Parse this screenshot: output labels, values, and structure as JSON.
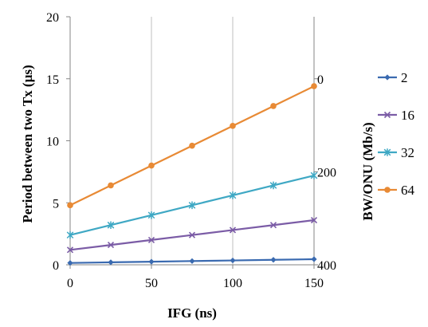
{
  "chart_data": {
    "type": "line",
    "xlabel": "IFG (ns)",
    "ylabel": "Period between two Tx (µs)",
    "y2label": "BW/ONU (Mb/s)",
    "x": [
      0,
      25,
      50,
      75,
      100,
      125,
      150
    ],
    "xticks": [
      "0",
      "50",
      "100",
      "150"
    ],
    "xtick_values": [
      0,
      50,
      100,
      150
    ],
    "xlim": [
      0,
      150
    ],
    "ylim": [
      0,
      20
    ],
    "yticks": [
      "0",
      "5",
      "10",
      "15",
      "20"
    ],
    "ytick_values": [
      0,
      5,
      10,
      15,
      20
    ],
    "y2ticks": [
      "0",
      "200",
      "400"
    ],
    "y2tick_values": [
      0,
      200,
      400
    ],
    "y2lim_top_at_y": 15,
    "y2lim_bottom_at_y": 0,
    "grid": "vertical",
    "legend_position": "right",
    "series": [
      {
        "name": "2",
        "color": "#3a6ab0",
        "marker": "diamond",
        "values": [
          0.15,
          0.2,
          0.25,
          0.3,
          0.35,
          0.4,
          0.45
        ]
      },
      {
        "name": "16",
        "color": "#7b5ca6",
        "marker": "x",
        "values": [
          1.2,
          1.6,
          2.0,
          2.4,
          2.8,
          3.2,
          3.6
        ]
      },
      {
        "name": "32",
        "color": "#3fa8c4",
        "marker": "star",
        "values": [
          2.4,
          3.2,
          4.0,
          4.8,
          5.6,
          6.4,
          7.2
        ]
      },
      {
        "name": "64",
        "color": "#e88a35",
        "marker": "circle",
        "values": [
          4.8,
          6.4,
          8.0,
          9.6,
          11.2,
          12.8,
          14.4
        ]
      }
    ]
  }
}
